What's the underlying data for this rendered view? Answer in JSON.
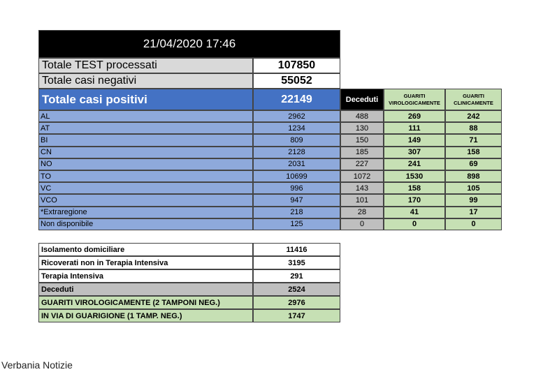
{
  "header": {
    "datetime": "21/04/2020 17:46"
  },
  "summary": [
    {
      "label": "Totale TEST processati",
      "value": 107850
    },
    {
      "label": "Totale casi negativi",
      "value": 55052
    },
    {
      "label": "Totale casi positivi",
      "value": 22149
    }
  ],
  "table": {
    "columns": [
      "Deceduti",
      "GUARITI VIROLOGICAMENTE",
      "GUARITI CLINICAMENTE"
    ],
    "rows": [
      [
        "AL",
        2962,
        488,
        269,
        242
      ],
      [
        "AT",
        1234,
        130,
        111,
        88
      ],
      [
        "BI",
        809,
        150,
        149,
        71
      ],
      [
        "CN",
        2128,
        185,
        307,
        158
      ],
      [
        "NO",
        2031,
        227,
        241,
        69
      ],
      [
        "TO",
        10699,
        1072,
        1530,
        898
      ],
      [
        "VC",
        996,
        143,
        158,
        105
      ],
      [
        "VCO",
        947,
        101,
        170,
        99
      ],
      [
        "*Extraregione",
        218,
        28,
        41,
        17
      ],
      [
        "Non disponibile",
        125,
        0,
        0,
        0
      ]
    ]
  },
  "status": [
    {
      "label": "Isolamento domiciliare",
      "value": 11416
    },
    {
      "label": "Ricoverati non in Terapia Intensiva",
      "value": 3195
    },
    {
      "label": "Terapia Intensiva",
      "value": 291
    },
    {
      "label": "Deceduti",
      "value": 2524
    },
    {
      "label": "GUARITI VIROLOGICAMENTE (2 TAMPONI NEG.)",
      "value": 2976
    },
    {
      "label": "IN VIA DI GUARIGIONE (1 TAMP. NEG.)",
      "value": 1747
    }
  ],
  "footer": {
    "source": "Verbania Notizie"
  }
}
